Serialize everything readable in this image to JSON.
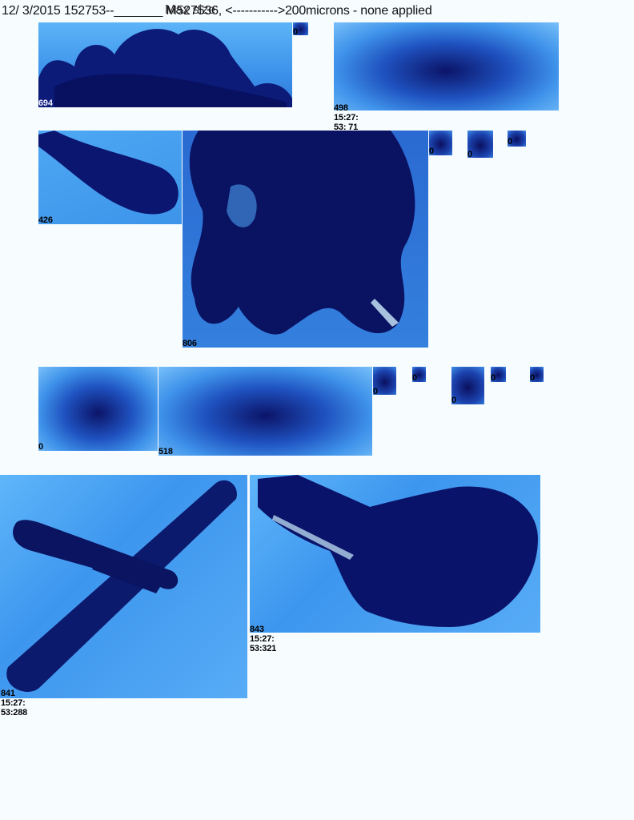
{
  "header": {
    "text": "12/ 3/2015 152753--_______ M527536, <----------->200microns - none applied",
    "overlap_text": "Max size"
  },
  "particles": [
    {
      "id": "p1",
      "label": "694"
    },
    {
      "id": "p2",
      "label": "0"
    },
    {
      "id": "p3",
      "label": "498\n15:27:\n53: 71"
    },
    {
      "id": "p4",
      "label": "426"
    },
    {
      "id": "p5",
      "label": "806"
    },
    {
      "id": "p6",
      "label": "0"
    },
    {
      "id": "p7",
      "label": "0"
    },
    {
      "id": "p8",
      "label": "0"
    },
    {
      "id": "p9",
      "label": "0"
    },
    {
      "id": "p10",
      "label": "518"
    },
    {
      "id": "p11",
      "label": "0"
    },
    {
      "id": "p12",
      "label": "0"
    },
    {
      "id": "p13",
      "label": "0"
    },
    {
      "id": "p14",
      "label": "0"
    },
    {
      "id": "p15",
      "label": "0"
    },
    {
      "id": "p16",
      "label": "841\n15:27:\n53:288"
    },
    {
      "id": "p17",
      "label": "843\n15:27:\n53:321"
    }
  ]
}
